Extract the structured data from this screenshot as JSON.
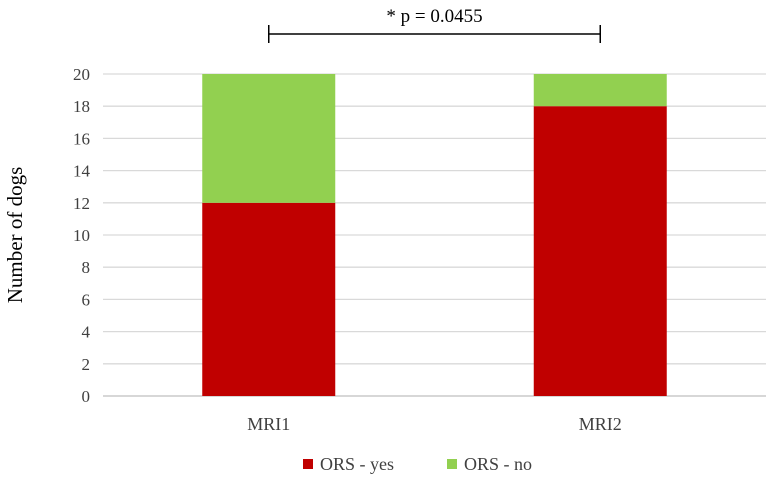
{
  "chart_data": {
    "type": "bar",
    "stacked": true,
    "categories": [
      "MRI1",
      "MRI2"
    ],
    "series": [
      {
        "name": "ORS - yes",
        "values": [
          12,
          18
        ],
        "color": "#c00000"
      },
      {
        "name": "ORS - no",
        "values": [
          8,
          2
        ],
        "color": "#92d050"
      }
    ],
    "ylabel": "Number of dogs",
    "ylim": [
      0,
      20
    ],
    "yticks": [
      0,
      2,
      4,
      6,
      8,
      10,
      12,
      14,
      16,
      18,
      20
    ],
    "grid": true,
    "legend_position": "bottom",
    "annotation": {
      "text": "* p = 0.0455",
      "from": "MRI1",
      "to": "MRI2"
    }
  }
}
